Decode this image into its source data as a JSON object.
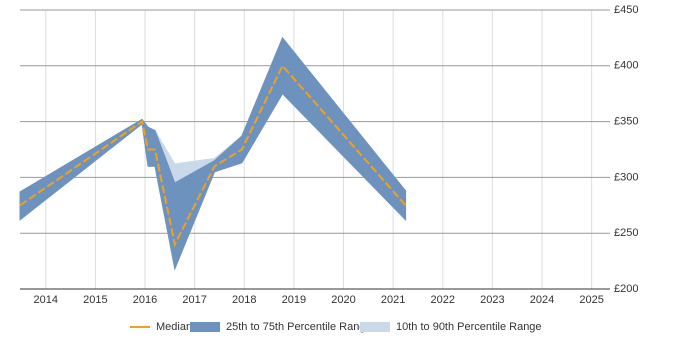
{
  "chart_data": {
    "type": "range-line",
    "xlim": [
      2013.48,
      2025.37
    ],
    "xticks": [
      2014,
      2015,
      2016,
      2017,
      2018,
      2019,
      2020,
      2021,
      2022,
      2023,
      2024,
      2025
    ],
    "ylim": [
      200,
      450
    ],
    "yticks": [
      {
        "value": 200,
        "label": "£200"
      },
      {
        "value": 250,
        "label": "£250"
      },
      {
        "value": 300,
        "label": "£300"
      },
      {
        "value": 350,
        "label": "£350"
      },
      {
        "value": 400,
        "label": "£400"
      },
      {
        "value": 450,
        "label": "£450"
      }
    ],
    "grid": true,
    "legend": "bottom",
    "x": [
      2013.48,
      2015.94,
      2016.06,
      2016.2,
      2016.6,
      2017.4,
      2017.95,
      2018.77,
      2021.25
    ],
    "series": [
      {
        "name": "10th to 90th Percentile Range",
        "color": "#c9d9ea",
        "low": [
          262,
          348,
          310,
          310,
          218,
          305,
          313,
          375,
          262
        ],
        "high": [
          287,
          352,
          345,
          342,
          312,
          317,
          337,
          425,
          288
        ]
      },
      {
        "name": "25th to 75th Percentile Range",
        "color": "#6d92bd",
        "low": [
          262,
          348,
          310,
          310,
          218,
          305,
          313,
          375,
          262
        ],
        "high": [
          287,
          352,
          345,
          342,
          295,
          315,
          337,
          425,
          288
        ]
      },
      {
        "name": "Median",
        "color": "#f0a020",
        "values": [
          275,
          350,
          325,
          325,
          240,
          310,
          325,
          400,
          275
        ]
      }
    ]
  }
}
